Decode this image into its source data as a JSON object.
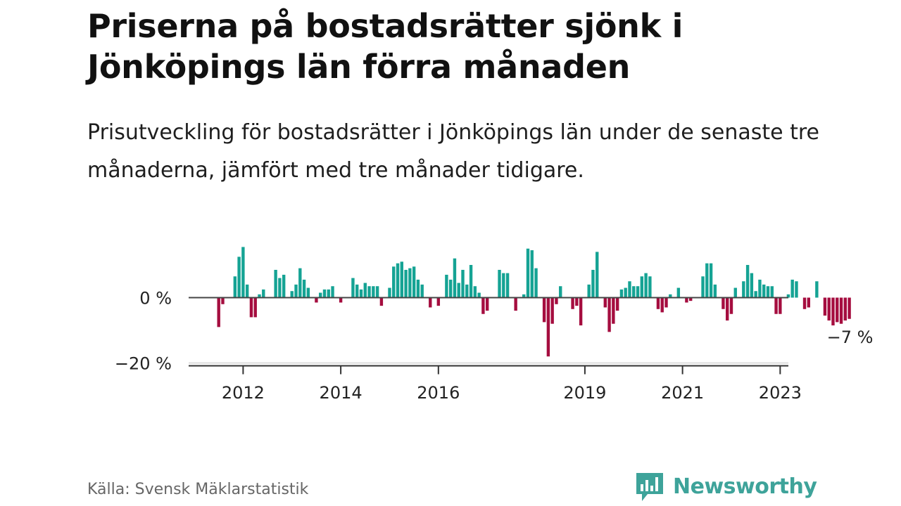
{
  "title": "Priserna på bostadsrätter sjönk i Jönköpings län förra månaden",
  "subtitle": "Prisutveckling för bostadsrätter i Jönköpings län under de senaste tre månaderna, jämfört med tre månader tidigare.",
  "source": "Källa: Svensk Mäklarstatistik",
  "brand": {
    "name": "Newsworthy",
    "logo_icon": "bar-chart-speech-bubble-icon"
  },
  "colors": {
    "positive": "#15a394",
    "negative": "#a50d3f",
    "zero_line": "#444444",
    "bottom_axis": "#333333",
    "grid": "#dddddd",
    "brand": "#3ea39a"
  },
  "chart_data": {
    "type": "bar",
    "unit": "%",
    "start": "2011-07",
    "frequency": "monthly",
    "ylim": [
      -20,
      15
    ],
    "y_ticks": [
      {
        "value": 0,
        "label": "0 %"
      },
      {
        "value": -20,
        "label": "−20 %"
      }
    ],
    "x_ticks": [
      {
        "year": 2012,
        "label": "2012"
      },
      {
        "year": 2014,
        "label": "2014"
      },
      {
        "year": 2016,
        "label": "2016"
      },
      {
        "year": 2019,
        "label": "2019"
      },
      {
        "year": 2021,
        "label": "2021"
      },
      {
        "year": 2023,
        "label": "2023"
      }
    ],
    "last_value_label": "−7 %",
    "values": [
      -9.0,
      -2.0,
      0,
      0,
      6.5,
      12.5,
      15.5,
      4.0,
      -6.0,
      -6.0,
      1.0,
      2.5,
      0,
      0,
      8.5,
      6.0,
      7.0,
      0,
      2.0,
      4.0,
      9.0,
      5.5,
      3.0,
      0,
      -1.5,
      1.5,
      2.5,
      2.5,
      3.5,
      0,
      -1.5,
      0,
      0,
      6.0,
      4.0,
      2.5,
      4.5,
      3.5,
      3.5,
      3.5,
      -2.5,
      0,
      3.0,
      9.5,
      10.5,
      11.0,
      8.5,
      9.0,
      9.5,
      5.5,
      4.0,
      0,
      -3.0,
      0,
      -2.5,
      0,
      7.0,
      5.5,
      12.0,
      4.5,
      8.5,
      4.0,
      10.0,
      3.5,
      1.5,
      -5.0,
      -4.0,
      0,
      0,
      8.5,
      7.5,
      7.5,
      0,
      -4.0,
      0,
      1.0,
      15.0,
      14.5,
      9.0,
      0,
      -7.5,
      -18.0,
      -8.0,
      -2.0,
      3.5,
      0,
      0,
      -3.5,
      -2.5,
      -8.5,
      0,
      4.0,
      8.5,
      14.0,
      0,
      -3.0,
      -10.5,
      -8.0,
      -4.0,
      2.5,
      3.0,
      5.0,
      3.5,
      3.5,
      6.5,
      7.5,
      6.5,
      0,
      -3.5,
      -4.5,
      -3.0,
      1.0,
      0,
      3.0,
      0,
      -1.5,
      -1.0,
      0,
      0,
      6.5,
      10.5,
      10.5,
      4.0,
      0,
      -3.5,
      -7.0,
      -5.0,
      3.0,
      0,
      5.0,
      10.0,
      7.5,
      2.0,
      5.5,
      4.0,
      3.5,
      3.5,
      -5.0,
      -5.0,
      0,
      1.0,
      5.5,
      5.0,
      0,
      -3.5,
      -3.0,
      0,
      5.0,
      0,
      -5.5,
      -7.0,
      -8.5,
      -7.5,
      -8.0,
      -7.0,
      -6.5
    ]
  }
}
